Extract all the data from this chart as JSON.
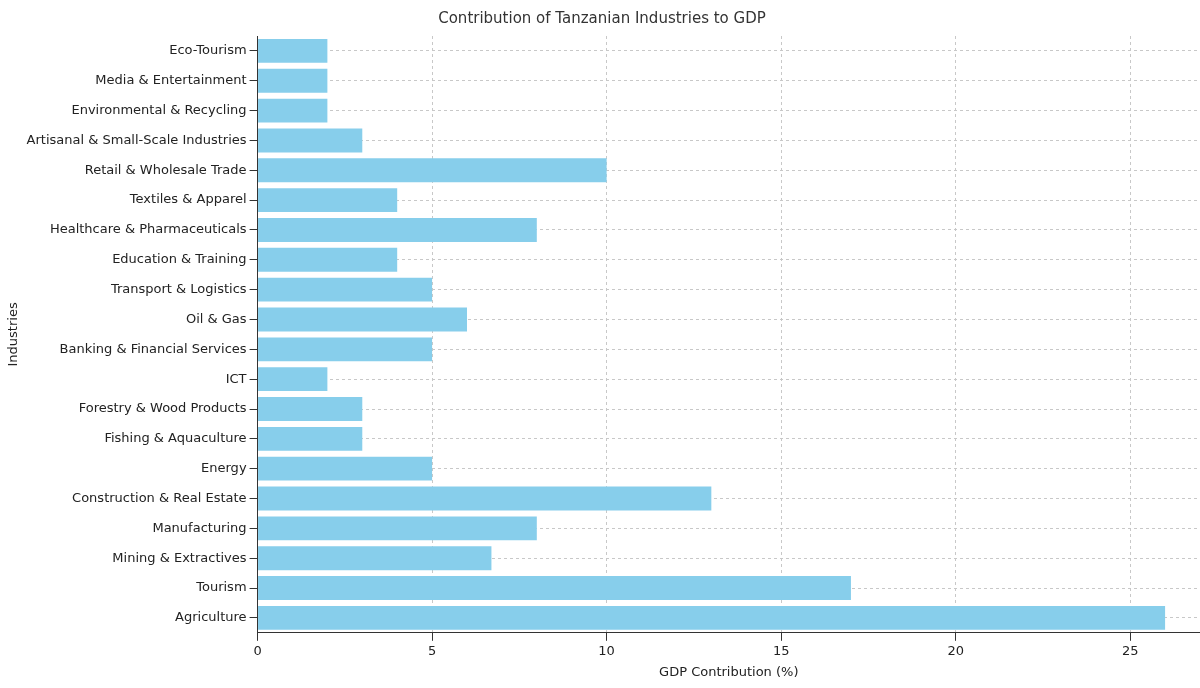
{
  "chart_data": {
    "type": "bar",
    "orientation": "horizontal",
    "title": "Contribution of Tanzanian Industries to GDP",
    "xlabel": "GDP Contribution (%)",
    "ylabel": "Industries",
    "categories": [
      "Eco-Tourism",
      "Media & Entertainment",
      "Environmental & Recycling",
      "Artisanal & Small-Scale Industries",
      "Retail & Wholesale Trade",
      "Textiles & Apparel",
      "Healthcare & Pharmaceuticals",
      "Education & Training",
      "Transport & Logistics",
      "Oil & Gas",
      "Banking & Financial Services",
      "ICT",
      "Forestry & Wood Products",
      "Fishing & Aquaculture",
      "Energy",
      "Construction & Real Estate",
      "Manufacturing",
      "Mining & Extractives",
      "Tourism",
      "Agriculture"
    ],
    "values": [
      2,
      2,
      2,
      3,
      10,
      4,
      8,
      4,
      5,
      6,
      5,
      2,
      3,
      3,
      5,
      13,
      8,
      6.7,
      17,
      26
    ],
    "color": "#87ceeb",
    "xlim": [
      0,
      27
    ],
    "xticks": [
      0,
      5,
      10,
      15,
      20,
      25
    ],
    "grid": true,
    "legend": false
  }
}
